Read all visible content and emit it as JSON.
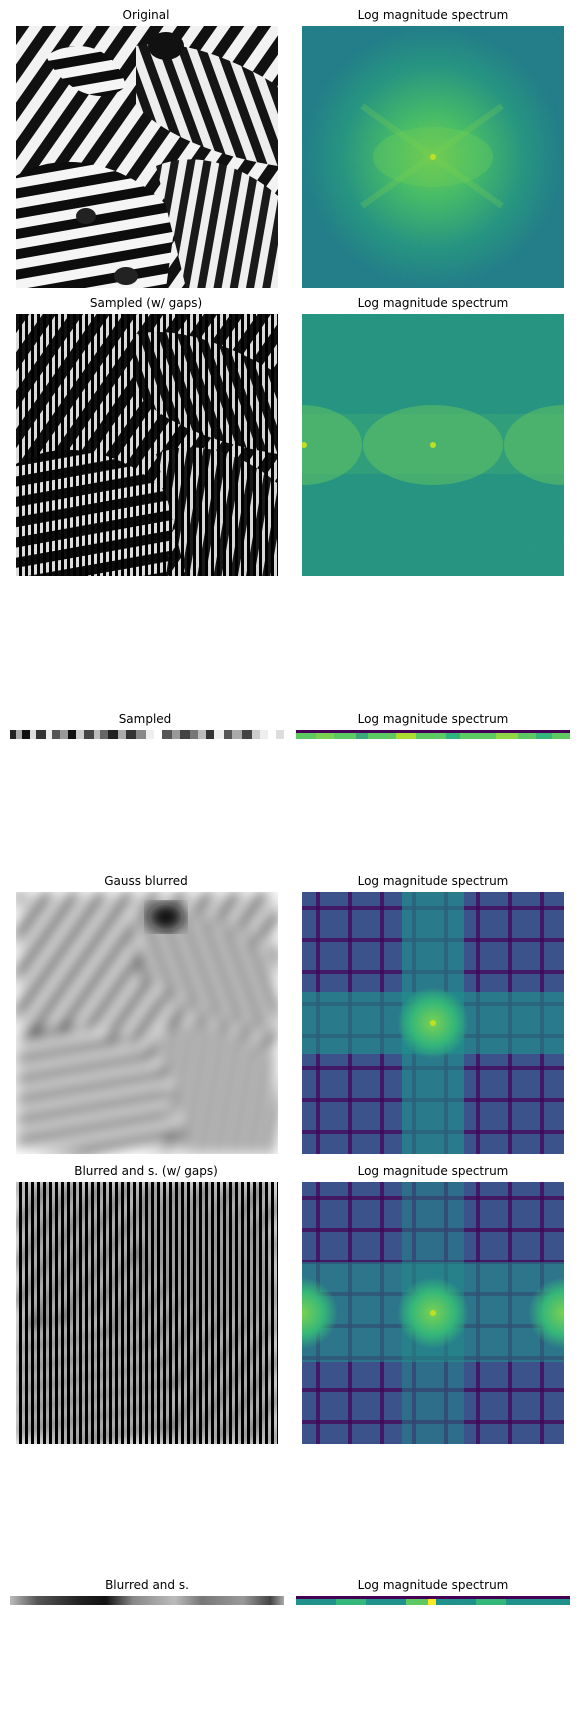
{
  "figure": {
    "panels": [
      {
        "title": "Original",
        "kind": "zebra"
      },
      {
        "title": "Log magnitude spectrum",
        "kind": "spectrum-plain"
      },
      {
        "title": "Sampled (w/ gaps)",
        "kind": "zebra-sampled"
      },
      {
        "title": "Log magnitude spectrum",
        "kind": "spectrum-sampled"
      },
      {
        "title": "Sampled",
        "kind": "strip-gray"
      },
      {
        "title": "Log magnitude spectrum",
        "kind": "strip-spectrum"
      },
      {
        "title": "Gauss blurred",
        "kind": "blurred"
      },
      {
        "title": "Log magnitude spectrum",
        "kind": "spectrum-blurred"
      },
      {
        "title": "Blurred and s. (w/ gaps)",
        "kind": "blurred-sampled"
      },
      {
        "title": "Log magnitude spectrum",
        "kind": "spectrum-blurred-sampled"
      },
      {
        "title": "Blurred and s.",
        "kind": "strip-gray-blurred"
      },
      {
        "title": "Log magnitude spectrum",
        "kind": "strip-spectrum-2"
      }
    ]
  },
  "colors": {
    "viridis_dark": "#440154",
    "viridis_blue": "#3b528b",
    "viridis_teal": "#21918c",
    "viridis_green": "#5ec962",
    "viridis_yellow": "#fde725"
  }
}
